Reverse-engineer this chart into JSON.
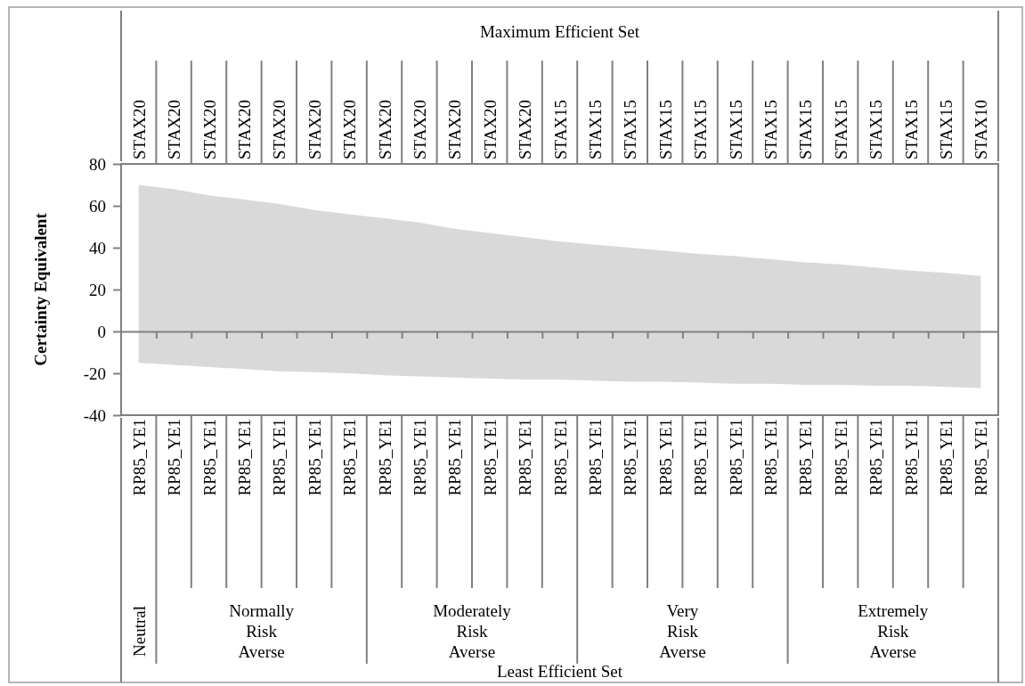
{
  "chart_data": {
    "type": "area",
    "ylabel": "Certainty Equivalent",
    "categories": [
      "RP85_YE1",
      "RP85_YE1",
      "RP85_YE1",
      "RP85_YE1",
      "RP85_YE1",
      "RP85_YE1",
      "RP85_YE1",
      "RP85_YE1",
      "RP85_YE1",
      "RP85_YE1",
      "RP85_YE1",
      "RP85_YE1",
      "RP85_YE1",
      "RP85_YE1",
      "RP85_YE1",
      "RP85_YE1",
      "RP85_YE1",
      "RP85_YE1",
      "RP85_YE1",
      "RP85_YE1",
      "RP85_YE1",
      "RP85_YE1",
      "RP85_YE1",
      "RP85_YE1",
      "RP85_YE1"
    ],
    "series": [
      {
        "color": "#d9d9d9",
        "values": [
          70,
          68,
          65,
          63,
          61,
          58,
          56,
          54,
          52,
          49,
          47,
          45,
          43,
          41.5,
          40,
          38.5,
          37,
          36,
          34.5,
          33,
          32,
          30.5,
          29,
          28,
          26.5
        ]
      },
      {
        "color": "#d9d9d9",
        "values": [
          -15,
          -16,
          -17,
          -18,
          -19,
          -19.5,
          -20,
          -21,
          -21.5,
          -22,
          -22.5,
          -23,
          -23,
          -23.5,
          -24,
          -24,
          -24.5,
          -25,
          -25,
          -25.5,
          -25.5,
          -26,
          -26,
          -26.5,
          -27
        ]
      }
    ],
    "ylim": [
      -40,
      80
    ],
    "yticks": [
      -40,
      -20,
      0,
      20,
      40,
      60,
      80
    ],
    "annotations": [
      "Maximum Efficient Set",
      "STAX20",
      "STAX20",
      "STAX20",
      "STAX20",
      "STAX20",
      "STAX20",
      "STAX20",
      "STAX20",
      "STAX20",
      "STAX20",
      "STAX20",
      "STAX20",
      "STAX15",
      "STAX15",
      "STAX15",
      "STAX15",
      "STAX15",
      "STAX15",
      "STAX15",
      "STAX15",
      "STAX15",
      "STAX15",
      "STAX15",
      "STAX15",
      "STAX10",
      "Neutral",
      "Normally Risk Averse",
      "Moderately Risk Averse",
      "Very Risk Averse",
      "Extremely Risk Averse",
      "Least Efficient Set"
    ]
  }
}
